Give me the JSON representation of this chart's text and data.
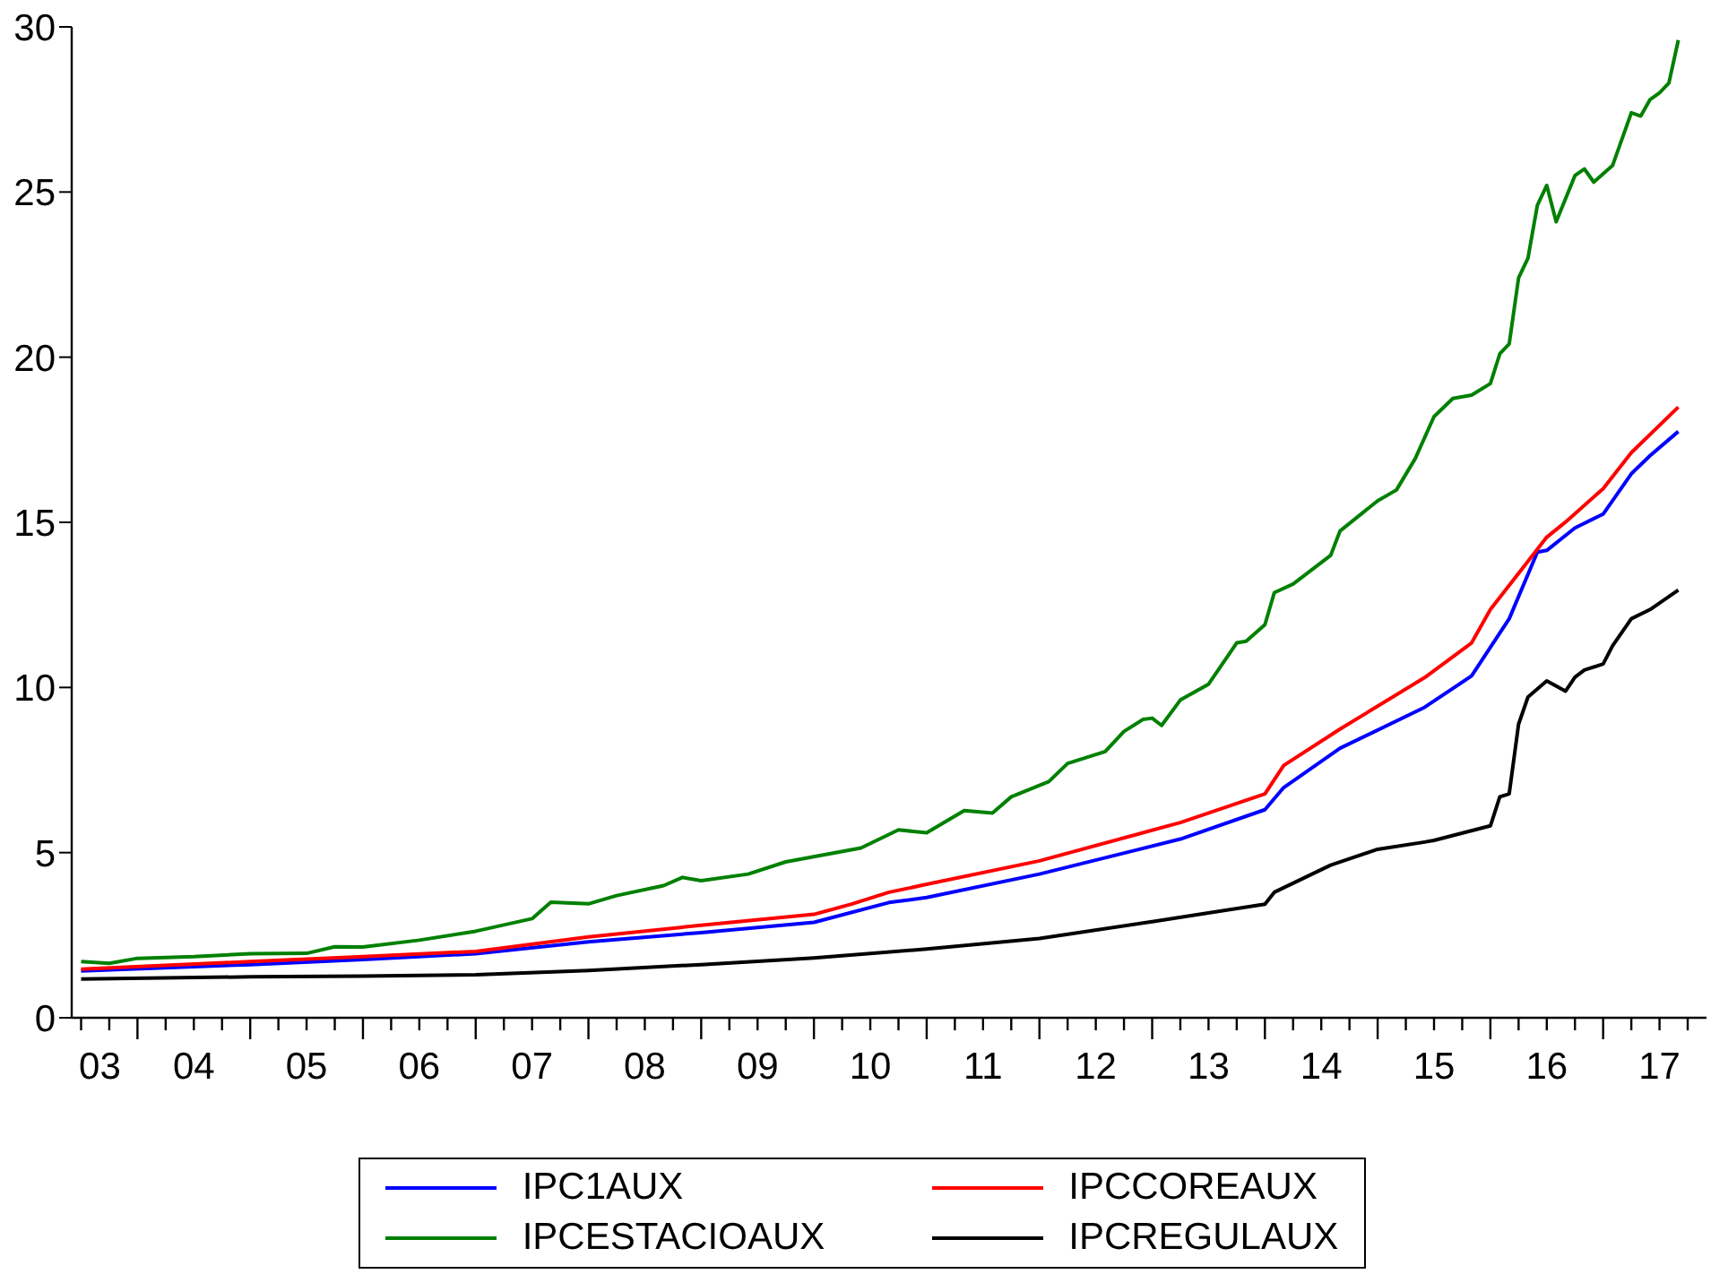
{
  "chart_data": {
    "type": "line",
    "xlim": [
      "2003-06",
      "2017-12"
    ],
    "ylim": [
      0,
      30
    ],
    "yticks": [
      0,
      5,
      10,
      15,
      20,
      25,
      30
    ],
    "xticks": [
      {
        "value": "2003-07",
        "label": null
      },
      {
        "value": "2003-09",
        "label": "03"
      },
      {
        "value": "2003-10",
        "label": null
      },
      {
        "value": "2004-01",
        "label": null
      },
      {
        "value": "2004-04",
        "label": null
      },
      {
        "value": "2004-07",
        "label": "04"
      },
      {
        "value": "2004-10",
        "label": null
      },
      {
        "value": "2005-01",
        "label": null
      },
      {
        "value": "2005-04",
        "label": null
      },
      {
        "value": "2005-07",
        "label": "05"
      },
      {
        "value": "2005-10",
        "label": null
      },
      {
        "value": "2006-01",
        "label": null
      },
      {
        "value": "2006-04",
        "label": null
      },
      {
        "value": "2006-07",
        "label": "06"
      },
      {
        "value": "2006-10",
        "label": null
      },
      {
        "value": "2007-01",
        "label": null
      },
      {
        "value": "2007-04",
        "label": null
      },
      {
        "value": "2007-07",
        "label": "07"
      },
      {
        "value": "2007-10",
        "label": null
      },
      {
        "value": "2008-01",
        "label": null
      },
      {
        "value": "2008-04",
        "label": null
      },
      {
        "value": "2008-07",
        "label": "08"
      },
      {
        "value": "2008-10",
        "label": null
      },
      {
        "value": "2009-01",
        "label": null
      },
      {
        "value": "2009-04",
        "label": null
      },
      {
        "value": "2009-07",
        "label": "09"
      },
      {
        "value": "2009-10",
        "label": null
      },
      {
        "value": "2010-01",
        "label": null
      },
      {
        "value": "2010-04",
        "label": null
      },
      {
        "value": "2010-07",
        "label": "10"
      },
      {
        "value": "2010-10",
        "label": null
      },
      {
        "value": "2011-01",
        "label": null
      },
      {
        "value": "2011-04",
        "label": null
      },
      {
        "value": "2011-07",
        "label": "11"
      },
      {
        "value": "2011-10",
        "label": null
      },
      {
        "value": "2012-01",
        "label": null
      },
      {
        "value": "2012-04",
        "label": null
      },
      {
        "value": "2012-07",
        "label": "12"
      },
      {
        "value": "2012-10",
        "label": null
      },
      {
        "value": "2013-01",
        "label": null
      },
      {
        "value": "2013-04",
        "label": null
      },
      {
        "value": "2013-07",
        "label": "13"
      },
      {
        "value": "2013-10",
        "label": null
      },
      {
        "value": "2014-01",
        "label": null
      },
      {
        "value": "2014-04",
        "label": null
      },
      {
        "value": "2014-07",
        "label": "14"
      },
      {
        "value": "2014-10",
        "label": null
      },
      {
        "value": "2015-01",
        "label": null
      },
      {
        "value": "2015-04",
        "label": null
      },
      {
        "value": "2015-07",
        "label": "15"
      },
      {
        "value": "2015-10",
        "label": null
      },
      {
        "value": "2016-01",
        "label": null
      },
      {
        "value": "2016-04",
        "label": null
      },
      {
        "value": "2016-07",
        "label": "16"
      },
      {
        "value": "2016-10",
        "label": null
      },
      {
        "value": "2017-01",
        "label": null
      },
      {
        "value": "2017-04",
        "label": null
      },
      {
        "value": "2017-07",
        "label": "17"
      },
      {
        "value": "2017-10",
        "label": null
      }
    ],
    "legend": "bottom",
    "line_style": "solid",
    "marker": "none",
    "series": [
      {
        "name": "IPC1AUX",
        "color": "#0000ff",
        "x": [
          "2003-07",
          "2005-01",
          "2006-01",
          "2007-01",
          "2008-01",
          "2009-01",
          "2010-01",
          "2010-09",
          "2011-01",
          "2012-01",
          "2013-04",
          "2014-01",
          "2014-03",
          "2014-09",
          "2015-06",
          "2015-11",
          "2016-03",
          "2016-06",
          "2016-07",
          "2016-10",
          "2017-01",
          "2017-04",
          "2017-06",
          "2017-09"
        ],
        "values": [
          1.42,
          1.61,
          1.76,
          1.94,
          2.3,
          2.58,
          2.89,
          3.49,
          3.64,
          4.35,
          5.41,
          6.3,
          6.97,
          8.16,
          9.4,
          10.35,
          12.08,
          14.1,
          14.15,
          14.83,
          15.25,
          16.47,
          17.02,
          17.75
        ]
      },
      {
        "name": "IPCCOREAUX",
        "color": "#ff0000",
        "x": [
          "2003-07",
          "2005-01",
          "2006-01",
          "2007-01",
          "2008-01",
          "2009-01",
          "2010-01",
          "2010-05",
          "2010-09",
          "2011-01",
          "2012-01",
          "2013-04",
          "2014-01",
          "2014-03",
          "2014-09",
          "2015-06",
          "2015-11",
          "2016-01",
          "2016-05",
          "2016-07",
          "2016-09",
          "2017-01",
          "2017-04",
          "2017-09"
        ],
        "values": [
          1.47,
          1.7,
          1.85,
          2.01,
          2.45,
          2.8,
          3.13,
          3.44,
          3.8,
          4.04,
          4.75,
          5.91,
          6.78,
          7.64,
          8.74,
          10.3,
          11.35,
          12.36,
          13.82,
          14.55,
          15.01,
          16.02,
          17.11,
          18.49
        ]
      },
      {
        "name": "IPCESTACIOAUX",
        "color": "#008000",
        "x": [
          "2003-07",
          "2003-10",
          "2004-01",
          "2004-07",
          "2005-01",
          "2005-07",
          "2005-10",
          "2006-01",
          "2006-07",
          "2007-01",
          "2007-07",
          "2007-09",
          "2008-01",
          "2008-04",
          "2008-09",
          "2008-11",
          "2009-01",
          "2009-06",
          "2009-10",
          "2010-06",
          "2010-10",
          "2011-01",
          "2011-05",
          "2011-08",
          "2011-10",
          "2012-02",
          "2012-04",
          "2012-08",
          "2012-10",
          "2012-12",
          "2013-01",
          "2013-02",
          "2013-04",
          "2013-07",
          "2013-10",
          "2013-11",
          "2014-01",
          "2014-02",
          "2014-04",
          "2014-08",
          "2014-09",
          "2015-01",
          "2015-03",
          "2015-05",
          "2015-07",
          "2015-09",
          "2015-11",
          "2016-01",
          "2016-02",
          "2016-03",
          "2016-04",
          "2016-05",
          "2016-06",
          "2016-07",
          "2016-08",
          "2016-10",
          "2016-11",
          "2016-12",
          "2017-02",
          "2017-04",
          "2017-05",
          "2017-06",
          "2017-07",
          "2017-08",
          "2017-09"
        ],
        "values": [
          1.7,
          1.65,
          1.8,
          1.85,
          1.94,
          1.95,
          2.15,
          2.14,
          2.35,
          2.62,
          3.0,
          3.5,
          3.45,
          3.7,
          4.0,
          4.25,
          4.15,
          4.35,
          4.72,
          5.14,
          5.69,
          5.6,
          6.27,
          6.2,
          6.69,
          7.15,
          7.7,
          8.06,
          8.67,
          9.03,
          9.07,
          8.85,
          9.62,
          10.1,
          11.35,
          11.4,
          11.9,
          12.87,
          13.13,
          14.0,
          14.74,
          15.65,
          15.98,
          16.93,
          18.2,
          18.75,
          18.85,
          19.2,
          20.1,
          20.4,
          22.4,
          23.0,
          24.6,
          25.2,
          24.1,
          25.5,
          25.7,
          25.3,
          25.8,
          27.4,
          27.3,
          27.8,
          28.0,
          28.3,
          29.6
        ]
      },
      {
        "name": "IPCREGULAUX",
        "color": "#000000",
        "x": [
          "2003-07",
          "2005-01",
          "2006-01",
          "2007-01",
          "2008-01",
          "2009-01",
          "2010-01",
          "2011-01",
          "2012-01",
          "2013-01",
          "2014-01",
          "2014-02",
          "2014-08",
          "2015-01",
          "2015-06",
          "2015-07",
          "2016-01",
          "2016-02",
          "2016-03",
          "2016-04",
          "2016-05",
          "2016-07",
          "2016-09",
          "2016-10",
          "2016-11",
          "2017-01",
          "2017-02",
          "2017-04",
          "2017-06",
          "2017-09"
        ],
        "values": [
          1.17,
          1.24,
          1.26,
          1.3,
          1.43,
          1.61,
          1.81,
          2.08,
          2.4,
          2.91,
          3.44,
          3.8,
          4.62,
          5.1,
          5.32,
          5.37,
          5.81,
          6.69,
          6.78,
          8.89,
          9.71,
          10.2,
          9.89,
          10.31,
          10.53,
          10.71,
          11.26,
          12.08,
          12.36,
          12.95
        ]
      }
    ]
  }
}
